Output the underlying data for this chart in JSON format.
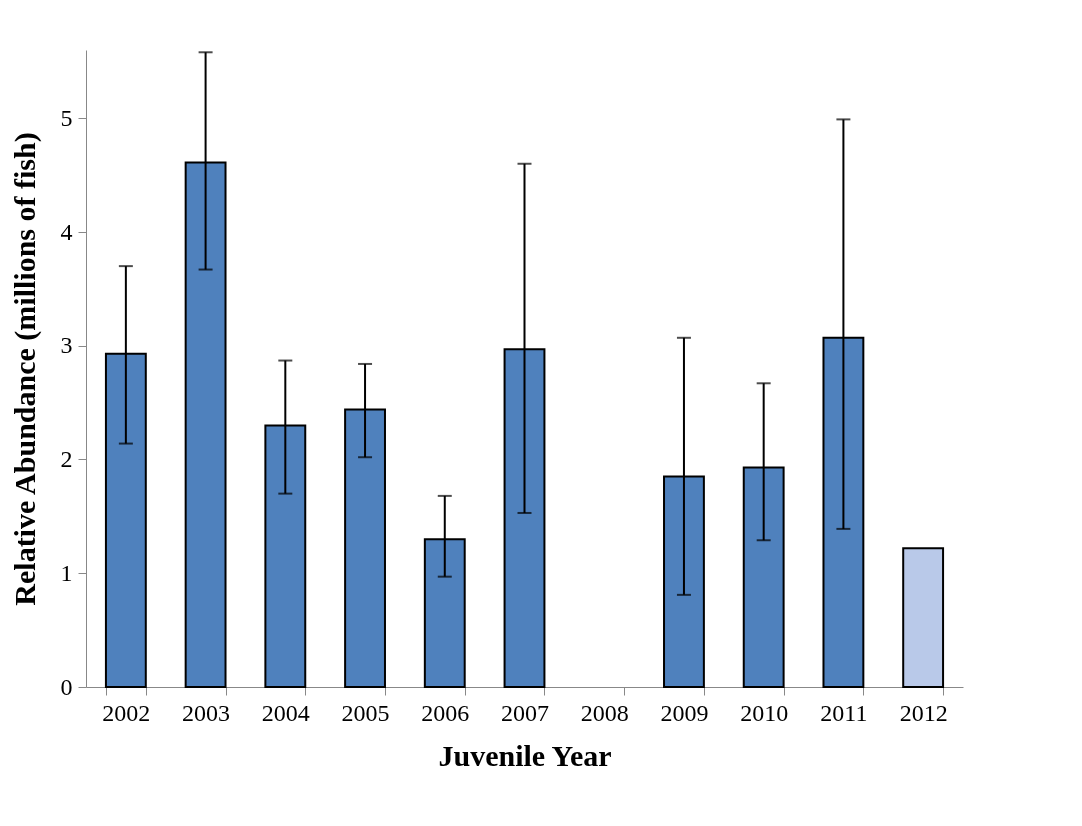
{
  "chart_data": {
    "type": "bar",
    "xlabel": "Juvenile Year",
    "ylabel": "Relative Abundance (millions of fish)",
    "categories": [
      "2002",
      "2003",
      "2004",
      "2005",
      "2006",
      "2007",
      "2008",
      "2009",
      "2010",
      "2011",
      "2012"
    ],
    "values": [
      2.93,
      4.61,
      2.3,
      2.44,
      1.3,
      2.97,
      null,
      1.85,
      1.93,
      3.07,
      1.22
    ],
    "colors": [
      "#4f81bd",
      "#4f81bd",
      "#4f81bd",
      "#4f81bd",
      "#4f81bd",
      "#4f81bd",
      "#4f81bd",
      "#4f81bd",
      "#4f81bd",
      "#4f81bd",
      "#b9c9e9"
    ],
    "errors": [
      [
        2.14,
        3.7
      ],
      [
        3.67,
        5.58
      ],
      [
        1.7,
        2.87
      ],
      [
        2.02,
        2.84
      ],
      [
        0.97,
        1.68
      ],
      [
        1.53,
        4.6
      ],
      null,
      [
        0.81,
        3.07
      ],
      [
        1.29,
        2.67
      ],
      [
        1.39,
        4.99
      ],
      null
    ],
    "ylim": [
      0,
      5.6
    ],
    "yticks": [
      0,
      1,
      2,
      3,
      4,
      5
    ],
    "grid": false,
    "legend": false
  }
}
